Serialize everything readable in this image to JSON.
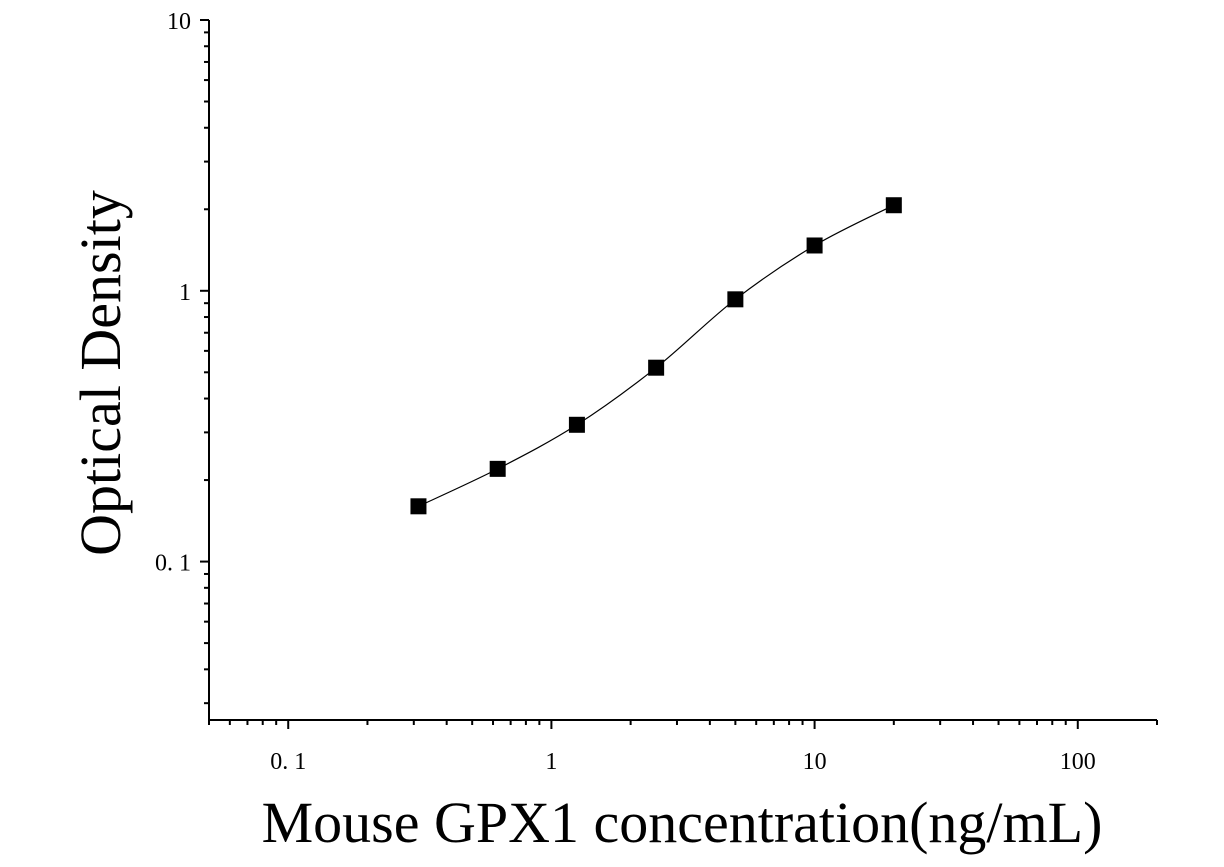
{
  "chart_data": {
    "type": "scatter",
    "title": "",
    "xlabel": "Mouse GPX1 concentration(ng/mL)",
    "ylabel": "Optical Density",
    "xscale": "log",
    "yscale": "log",
    "xlim": [
      0.05,
      200
    ],
    "ylim": [
      0.026,
      10
    ],
    "x_ticks": [
      {
        "value": 0.1,
        "label": "0. 1"
      },
      {
        "value": 1,
        "label": "1"
      },
      {
        "value": 10,
        "label": "10"
      },
      {
        "value": 100,
        "label": "100"
      }
    ],
    "y_ticks": [
      {
        "value": 0.1,
        "label": "0. 1"
      },
      {
        "value": 1,
        "label": "1"
      },
      {
        "value": 10,
        "label": "10"
      }
    ],
    "grid": false,
    "legend": "none",
    "series": [
      {
        "marker": "square",
        "fit_line": true,
        "color": "#000000",
        "x": [
          0.3125,
          0.625,
          1.25,
          2.5,
          5,
          10,
          20
        ],
        "y": [
          0.16,
          0.22,
          0.32,
          0.52,
          0.93,
          1.47,
          2.07
        ]
      }
    ]
  }
}
